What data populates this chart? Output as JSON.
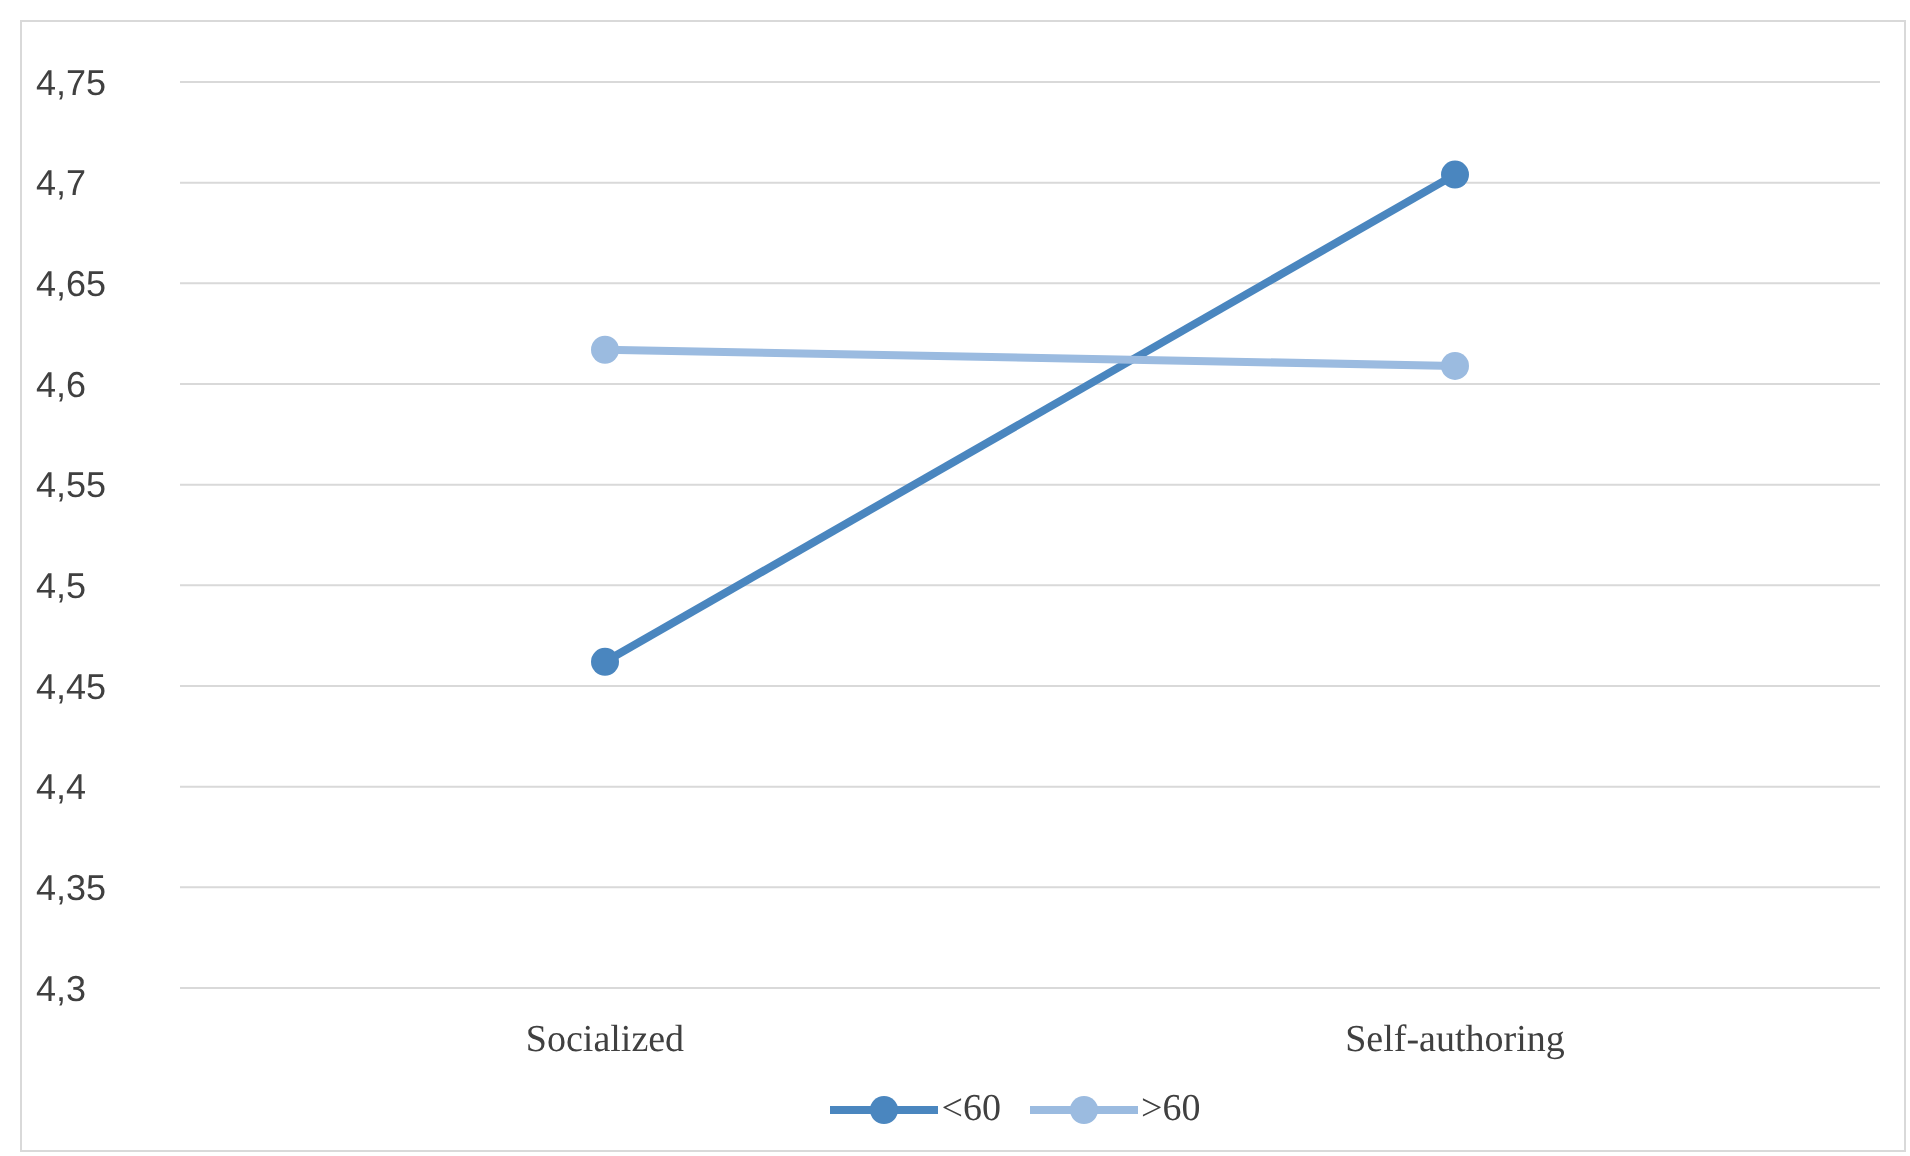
{
  "chart_data": {
    "type": "line",
    "categories": [
      "Socialized",
      "Self-authoring"
    ],
    "series": [
      {
        "name": "<60",
        "color": "#4a86bf",
        "values": [
          4.462,
          4.704
        ]
      },
      {
        "name": ">60",
        "color": "#9bbbe0",
        "values": [
          4.617,
          4.609
        ]
      }
    ],
    "ylim": [
      4.3,
      4.75
    ],
    "yticks": [
      {
        "value": 4.3,
        "label": "4,3"
      },
      {
        "value": 4.35,
        "label": "4,35"
      },
      {
        "value": 4.4,
        "label": "4,4"
      },
      {
        "value": 4.45,
        "label": "4,45"
      },
      {
        "value": 4.5,
        "label": "4,5"
      },
      {
        "value": 4.55,
        "label": "4,55"
      },
      {
        "value": 4.6,
        "label": "4,6"
      },
      {
        "value": 4.65,
        "label": "4,65"
      },
      {
        "value": 4.7,
        "label": "4,7"
      },
      {
        "value": 4.75,
        "label": "4,75"
      }
    ],
    "grid": "y",
    "legend": "bottom",
    "marker": "circle",
    "line_style": "solid"
  }
}
